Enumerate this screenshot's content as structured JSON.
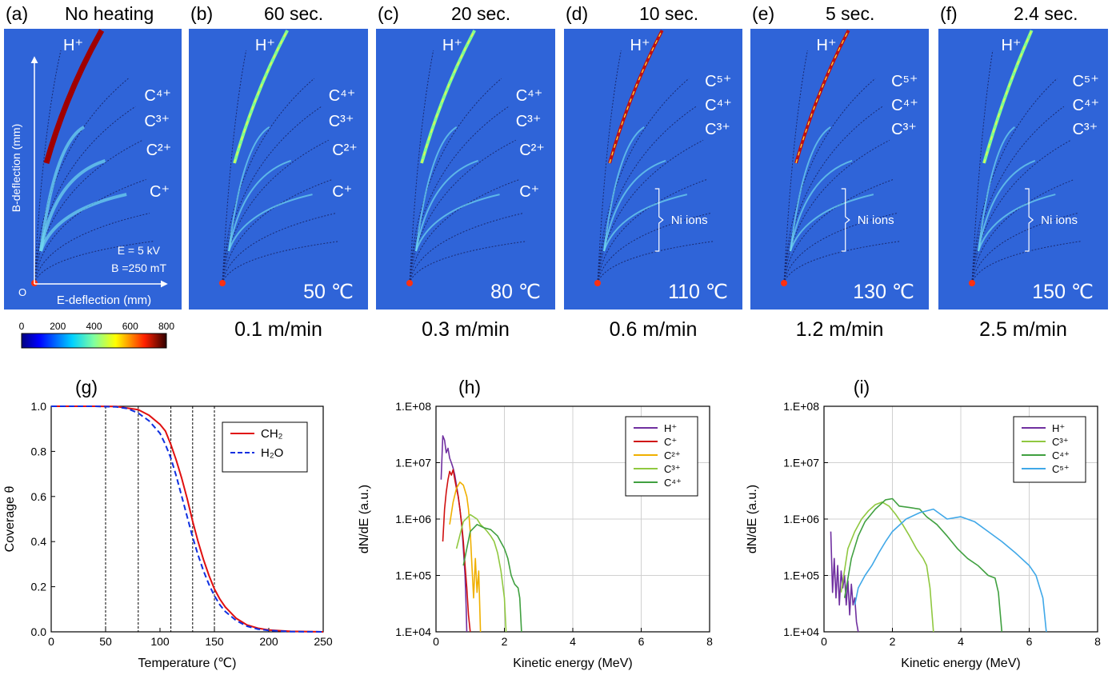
{
  "panels": [
    {
      "letter": "(a)",
      "label": "No heating",
      "temp": "",
      "speed": ""
    },
    {
      "letter": "(b)",
      "label": "60 sec.",
      "temp": "50 ℃",
      "speed": "0.1 m/min"
    },
    {
      "letter": "(c)",
      "label": "20 sec.",
      "temp": "80 ℃",
      "speed": "0.3 m/min"
    },
    {
      "letter": "(d)",
      "label": "10 sec.",
      "temp": "110 ℃",
      "speed": "0.6 m/min"
    },
    {
      "letter": "(e)",
      "label": "5 sec.",
      "temp": "130 ℃",
      "speed": "1.2 m/min"
    },
    {
      "letter": "(f)",
      "label": "2.4 sec.",
      "temp": "150 ℃",
      "speed": "2.5 m/min"
    }
  ],
  "panel_labels": {
    "a": {
      "H": "H⁺",
      "C4": "C⁴⁺",
      "C3": "C³⁺",
      "C2": "C²⁺",
      "C1": "C⁺",
      "ylabel": "B-deflection (mm)",
      "xlabel": "E-deflection (mm)",
      "origin": "O",
      "E": "E = 5 kV",
      "B": "B =250 mT"
    },
    "b": {
      "H": "H⁺",
      "C4": "C⁴⁺",
      "C3": "C³⁺",
      "C2": "C²⁺",
      "C1": "C⁺"
    },
    "c": {
      "H": "H⁺",
      "C4": "C⁴⁺",
      "C3": "C³⁺",
      "C2": "C²⁺",
      "C1": "C⁺"
    },
    "d": {
      "H": "H⁺",
      "C5": "C⁵⁺",
      "C4": "C⁴⁺",
      "C3": "C³⁺",
      "ni": "Ni ions"
    },
    "e": {
      "H": "H⁺",
      "C5": "C⁵⁺",
      "C4": "C⁴⁺",
      "C3": "C³⁺",
      "ni": "Ni ions"
    },
    "f": {
      "H": "H⁺",
      "C5": "C⁵⁺",
      "C4": "C⁴⁺",
      "C3": "C³⁺",
      "ni": "Ni ions"
    }
  },
  "colorbar": {
    "ticks": [
      "0",
      "200",
      "400",
      "600",
      "800"
    ]
  },
  "colors": {
    "detector_bg": "#2f64d8",
    "ch2": "#e01010",
    "h2o": "#1030e0"
  },
  "chart_data": [
    {
      "id": "g",
      "type": "line",
      "panel_label": "(g)",
      "xlabel": "Temperature (℃)",
      "ylabel": "Coverage θ",
      "xlim": [
        0,
        250
      ],
      "ylim": [
        0,
        1
      ],
      "xticks": [
        0,
        50,
        100,
        150,
        200,
        250
      ],
      "yticks": [
        0.0,
        0.2,
        0.4,
        0.6,
        0.8,
        1.0
      ],
      "ytick_labels": [
        "0.0",
        "0.2",
        "0.4",
        "0.6",
        "0.8",
        "1.0"
      ],
      "vlines": [
        50,
        80,
        110,
        130,
        150
      ],
      "legend_position": "top-right",
      "series": [
        {
          "name": "CH₂",
          "style": "solid",
          "color": "#e01010",
          "x": [
            0,
            40,
            60,
            80,
            90,
            100,
            105,
            110,
            115,
            120,
            125,
            130,
            135,
            140,
            145,
            150,
            155,
            160,
            170,
            180,
            190,
            200,
            220,
            250
          ],
          "y": [
            1.0,
            1.0,
            0.999,
            0.985,
            0.96,
            0.92,
            0.89,
            0.83,
            0.76,
            0.68,
            0.59,
            0.49,
            0.4,
            0.32,
            0.25,
            0.19,
            0.145,
            0.11,
            0.06,
            0.03,
            0.016,
            0.008,
            0.002,
            0.0
          ]
        },
        {
          "name": "H₂O",
          "style": "dashed",
          "color": "#1030e0",
          "x": [
            0,
            40,
            60,
            70,
            80,
            90,
            100,
            105,
            110,
            115,
            120,
            125,
            130,
            135,
            140,
            145,
            150,
            155,
            160,
            170,
            180,
            190,
            200,
            220,
            250
          ],
          "y": [
            1.0,
            1.0,
            0.997,
            0.99,
            0.97,
            0.935,
            0.88,
            0.83,
            0.77,
            0.69,
            0.6,
            0.51,
            0.42,
            0.34,
            0.27,
            0.21,
            0.16,
            0.12,
            0.09,
            0.05,
            0.025,
            0.012,
            0.006,
            0.001,
            0.0
          ]
        }
      ]
    },
    {
      "id": "h",
      "type": "line",
      "panel_label": "(h)",
      "xlabel": "Kinetic energy (MeV)",
      "ylabel": "dN/dE (a.u.)",
      "yscale": "log",
      "xlim": [
        0,
        8
      ],
      "ylim": [
        10000,
        100000000
      ],
      "xticks": [
        0,
        2,
        4,
        6,
        8
      ],
      "yticks": [
        10000,
        100000,
        1000000,
        10000000,
        100000000
      ],
      "ytick_labels": [
        "1.E+04",
        "1.E+05",
        "1.E+06",
        "1.E+07",
        "1.E+08"
      ],
      "grid": true,
      "legend_position": "top-right",
      "series": [
        {
          "name": "H⁺",
          "color": "#7030a0",
          "x": [
            0.15,
            0.2,
            0.25,
            0.3,
            0.35,
            0.4,
            0.45,
            0.5,
            0.55,
            0.6,
            0.65,
            0.7,
            0.75,
            0.8,
            0.85,
            0.88,
            0.9
          ],
          "y": [
            5000000,
            30000000,
            25000000,
            15000000,
            18000000,
            12000000,
            10000000,
            8000000,
            6000000,
            4000000,
            2500000,
            1500000,
            800000,
            300000,
            100000,
            30000,
            10000
          ]
        },
        {
          "name": "C⁺",
          "color": "#d01010",
          "x": [
            0.2,
            0.25,
            0.3,
            0.35,
            0.4,
            0.45,
            0.5,
            0.55,
            0.6,
            0.65,
            0.7,
            0.75,
            0.8,
            0.85,
            0.9,
            0.95,
            1.0
          ],
          "y": [
            400000,
            1500000,
            3000000,
            5000000,
            7000000,
            6000000,
            7500000,
            5000000,
            3500000,
            2500000,
            1500000,
            800000,
            400000,
            150000,
            60000,
            20000,
            10000
          ]
        },
        {
          "name": "C²⁺",
          "color": "#f0b000",
          "x": [
            0.4,
            0.5,
            0.6,
            0.7,
            0.8,
            0.9,
            0.95,
            1.0,
            1.05,
            1.1,
            1.15,
            1.2,
            1.25,
            1.3
          ],
          "y": [
            800000,
            2000000,
            3500000,
            4500000,
            4000000,
            2500000,
            1500000,
            600000,
            150000,
            40000,
            200000,
            50000,
            120000,
            10000
          ]
        },
        {
          "name": "C³⁺",
          "color": "#90c840",
          "x": [
            0.6,
            0.8,
            1.0,
            1.2,
            1.3,
            1.4,
            1.5,
            1.6,
            1.7,
            1.8,
            1.9,
            2.0,
            2.05
          ],
          "y": [
            300000,
            900000,
            1200000,
            1000000,
            800000,
            700000,
            600000,
            500000,
            400000,
            250000,
            120000,
            40000,
            10000
          ]
        },
        {
          "name": "C⁴⁺",
          "color": "#40a040",
          "x": [
            0.8,
            1.0,
            1.2,
            1.4,
            1.6,
            1.8,
            2.0,
            2.1,
            2.2,
            2.3,
            2.4,
            2.45,
            2.5
          ],
          "y": [
            150000,
            600000,
            800000,
            700000,
            650000,
            500000,
            300000,
            200000,
            100000,
            70000,
            60000,
            40000,
            10000
          ]
        }
      ]
    },
    {
      "id": "i",
      "type": "line",
      "panel_label": "(i)",
      "xlabel": "Kinetic energy (MeV)",
      "ylabel": "dN/dE (a.u.)",
      "yscale": "log",
      "xlim": [
        0,
        8
      ],
      "ylim": [
        10000,
        100000000
      ],
      "xticks": [
        0,
        2,
        4,
        6,
        8
      ],
      "yticks": [
        10000,
        100000,
        1000000,
        10000000,
        100000000
      ],
      "ytick_labels": [
        "1.E+04",
        "1.E+05",
        "1.E+06",
        "1.E+07",
        "1.E+08"
      ],
      "grid": true,
      "legend_position": "top-right",
      "series": [
        {
          "name": "H⁺",
          "color": "#7030a0",
          "x": [
            0.2,
            0.25,
            0.3,
            0.35,
            0.4,
            0.45,
            0.5,
            0.55,
            0.6,
            0.65,
            0.7,
            0.75,
            0.8,
            0.85,
            0.9,
            0.95,
            1.0
          ],
          "y": [
            600000,
            50000,
            200000,
            40000,
            150000,
            30000,
            120000,
            60000,
            100000,
            30000,
            80000,
            20000,
            70000,
            30000,
            40000,
            15000,
            10000
          ]
        },
        {
          "name": "C³⁺",
          "color": "#90c840",
          "x": [
            0.5,
            0.7,
            0.9,
            1.1,
            1.3,
            1.5,
            1.7,
            1.9,
            2.1,
            2.3,
            2.5,
            2.7,
            2.9,
            3.0,
            3.1,
            3.2
          ],
          "y": [
            50000,
            300000,
            600000,
            1000000,
            1400000,
            1800000,
            2000000,
            1700000,
            1200000,
            800000,
            500000,
            300000,
            200000,
            150000,
            60000,
            10000
          ]
        },
        {
          "name": "C⁴⁺",
          "color": "#40a040",
          "x": [
            0.6,
            0.8,
            1.0,
            1.2,
            1.5,
            1.8,
            2.0,
            2.2,
            2.5,
            2.8,
            3.0,
            3.3,
            3.6,
            3.9,
            4.2,
            4.5,
            4.8,
            5.0,
            5.1,
            5.2
          ],
          "y": [
            40000,
            200000,
            500000,
            900000,
            1500000,
            2200000,
            2300000,
            1700000,
            1600000,
            1500000,
            1100000,
            800000,
            500000,
            300000,
            200000,
            150000,
            100000,
            90000,
            50000,
            10000
          ]
        },
        {
          "name": "C⁵⁺",
          "color": "#40a8e8",
          "x": [
            0.9,
            1.0,
            1.2,
            1.4,
            1.6,
            1.8,
            2.0,
            2.4,
            2.8,
            3.2,
            3.6,
            4.0,
            4.4,
            4.8,
            5.2,
            5.6,
            6.0,
            6.2,
            6.4,
            6.5
          ],
          "y": [
            30000,
            60000,
            100000,
            150000,
            250000,
            400000,
            600000,
            1000000,
            1300000,
            1500000,
            1000000,
            1100000,
            900000,
            600000,
            400000,
            250000,
            150000,
            100000,
            40000,
            10000
          ]
        }
      ]
    }
  ]
}
